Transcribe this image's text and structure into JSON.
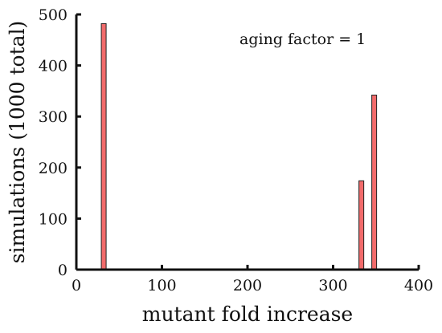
{
  "chart_data": {
    "type": "bar",
    "title": "",
    "xlabel": "mutant fold increase",
    "ylabel": "simulations (1000 total)",
    "annotation": "aging factor = 1",
    "xlim": [
      0,
      400
    ],
    "ylim": [
      0,
      500
    ],
    "x_ticks": [
      0,
      100,
      200,
      300,
      400
    ],
    "y_ticks": [
      0,
      100,
      200,
      300,
      400,
      500
    ],
    "bar_color": "#f26b6b",
    "bar_edge_color": "#222222",
    "grid": false,
    "bars": [
      {
        "x": 32,
        "value": 482
      },
      {
        "x": 333,
        "value": 174
      },
      {
        "x": 348,
        "value": 342
      }
    ]
  }
}
